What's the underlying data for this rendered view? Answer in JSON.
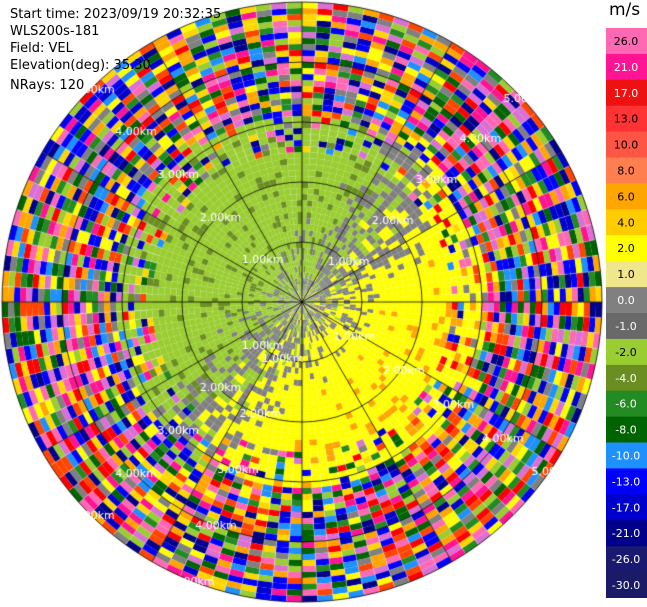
{
  "header": {
    "start_time": "Start time: 2023/09/19 20:32:35",
    "instrument": "WLS200s-181",
    "field": "Field: VEL",
    "elevation": "Elevation(deg): 35.30",
    "nrays": "NRays: 120"
  },
  "range_rings": [
    {
      "label": "1.00km",
      "km": 1
    },
    {
      "label": "2.00km",
      "km": 2
    },
    {
      "label": "3.00km",
      "km": 3
    },
    {
      "label": "4.00km",
      "km": 4
    },
    {
      "label": "5.00km",
      "km": 5
    }
  ],
  "colorbar": {
    "unit": "m/s",
    "ticks": [
      "26.0",
      "21.0",
      "17.0",
      "13.0",
      "10.0",
      "8.0",
      "6.0",
      "4.0",
      "2.0",
      "1.0",
      "0.0",
      "-1.0",
      "-2.0",
      "-4.0",
      "-6.0",
      "-8.0",
      "-10.0",
      "-13.0",
      "-17.0",
      "-21.0",
      "-26.0",
      "-30.0"
    ],
    "colors": [
      "#ff69b4",
      "#ff1493",
      "#ee1111",
      "#ff3333",
      "#ff5544",
      "#ff7f50",
      "#ffa500",
      "#ffcc00",
      "#ffff00",
      "#f0e68c",
      "#808080",
      "#696969",
      "#9acd32",
      "#6b8e23",
      "#228b22",
      "#006400",
      "#1e90ff",
      "#0000ff",
      "#0000cd",
      "#00008b",
      "#191970",
      "#1a1a66"
    ]
  }
}
